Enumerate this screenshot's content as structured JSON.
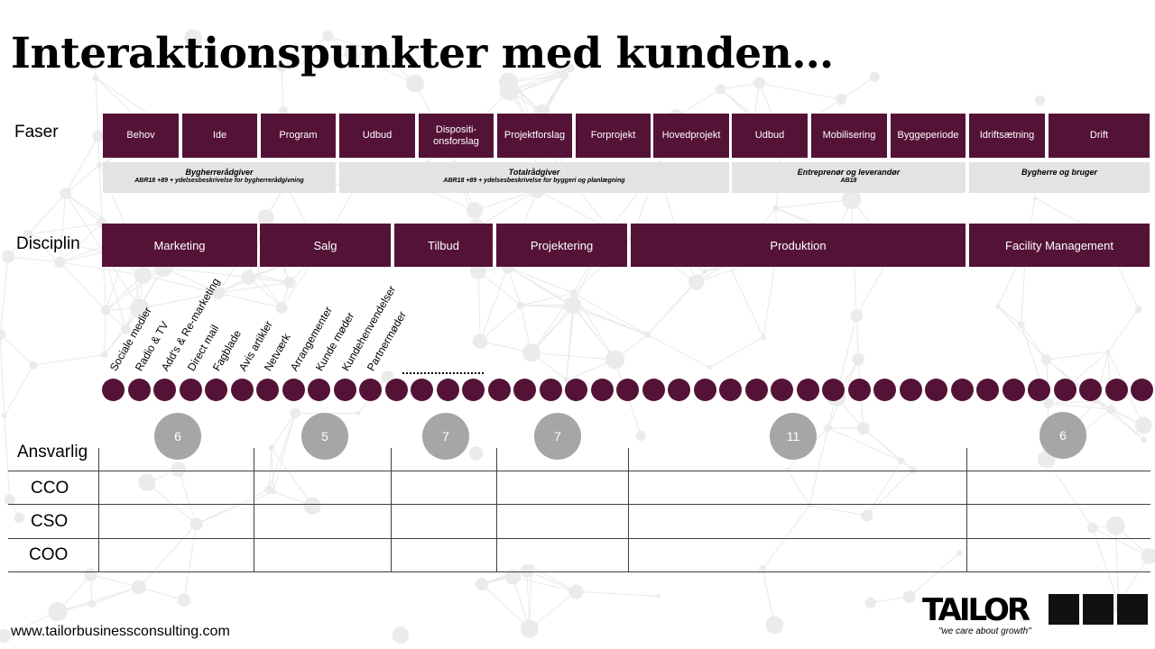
{
  "title": "Interaktionspunkter med kunden…",
  "labels": {
    "faser": "Faser",
    "disciplin": "Disciplin",
    "ansvarlig": "Ansvarlig"
  },
  "phases": [
    "Behov",
    "Ide",
    "Program",
    "Udbud",
    "Dispositi-onsforslag",
    "Projektforslag",
    "Forprojekt",
    "Hovedprojekt",
    "Udbud",
    "Mobilisering",
    "Byggeperiode",
    "Idriftsætning",
    "Drift"
  ],
  "roles": [
    {
      "title": "Bygherrerådgiver",
      "sub": "ABR18 +89 + ydelsesbeskrivelse for bygherrerådgivning"
    },
    {
      "title": "Totalrådgiver",
      "sub": "ABR18 +89 + ydelsesbeskrivelse for byggeri og planlægning"
    },
    {
      "title": "Entreprenør og leverandør",
      "sub": "AB18"
    },
    {
      "title": "Bygherre og bruger",
      "sub": ""
    }
  ],
  "disciplines": [
    "Marketing",
    "Salg",
    "Tilbud",
    "Projektering",
    "Produktion",
    "Facility Management"
  ],
  "touchpoints": [
    "Sociale medier",
    "Radio & TV",
    "Add’s & Re-marketing",
    "Direct mail",
    "Fagblade",
    "Avis artikler",
    "Netværk",
    "Arrangementer",
    "Kunde møder",
    "Kundehenvendelser",
    "Partnermøder"
  ],
  "ellipsis": "…………………",
  "counts": [
    "6",
    "5",
    "7",
    "7",
    "11",
    "6"
  ],
  "responsible": [
    "CCO",
    "CSO",
    "COO"
  ],
  "url": "www.tailorbusinessconsulting.com",
  "logo": {
    "text": "TAILOR",
    "tagline": "\"we care about growth\""
  },
  "colors": {
    "primary": "#541236",
    "role_bg": "#e3e3e3",
    "count_bg": "#a6a6a6"
  }
}
